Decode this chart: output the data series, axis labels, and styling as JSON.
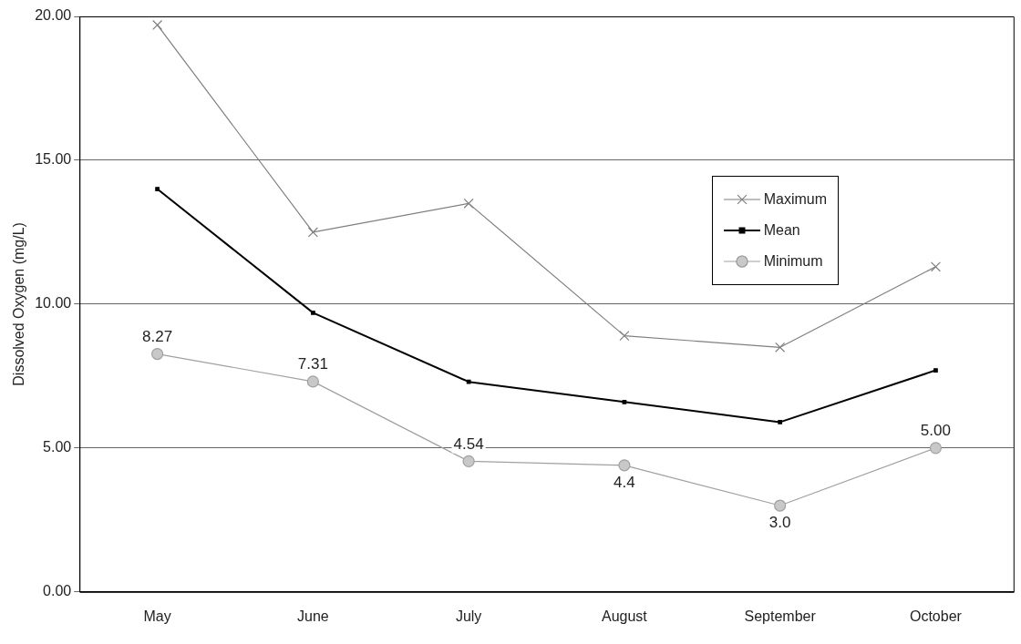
{
  "chart_data": {
    "type": "line",
    "ylabel": "Dissolved Oxygen (mg/L)",
    "categories": [
      "May",
      "June",
      "July",
      "August",
      "September",
      "October"
    ],
    "series": [
      {
        "name": "Maximum",
        "color": "#7f7f7f",
        "marker": "cross",
        "values": [
          19.7,
          12.5,
          13.5,
          8.9,
          8.5,
          11.3
        ]
      },
      {
        "name": "Mean",
        "color": "#000000",
        "marker": "square",
        "values": [
          14.0,
          9.7,
          7.3,
          6.6,
          5.9,
          7.7
        ]
      },
      {
        "name": "Minimum",
        "color": "#a0a0a0",
        "marker": "circle",
        "values": [
          8.27,
          7.31,
          4.54,
          4.4,
          3.0,
          5.0
        ],
        "value_labels": [
          "8.27",
          "7.31",
          "4.54",
          "4.4",
          "3.0",
          "5.00"
        ]
      }
    ],
    "ylim": [
      0,
      20
    ],
    "yticks": [
      {
        "value": 0,
        "label": "0.00"
      },
      {
        "value": 5,
        "label": "5.00"
      },
      {
        "value": 10,
        "label": "10.00"
      },
      {
        "value": 15,
        "label": "15.00"
      },
      {
        "value": 20,
        "label": "20.00"
      }
    ],
    "grid": "y",
    "legend": "right"
  }
}
